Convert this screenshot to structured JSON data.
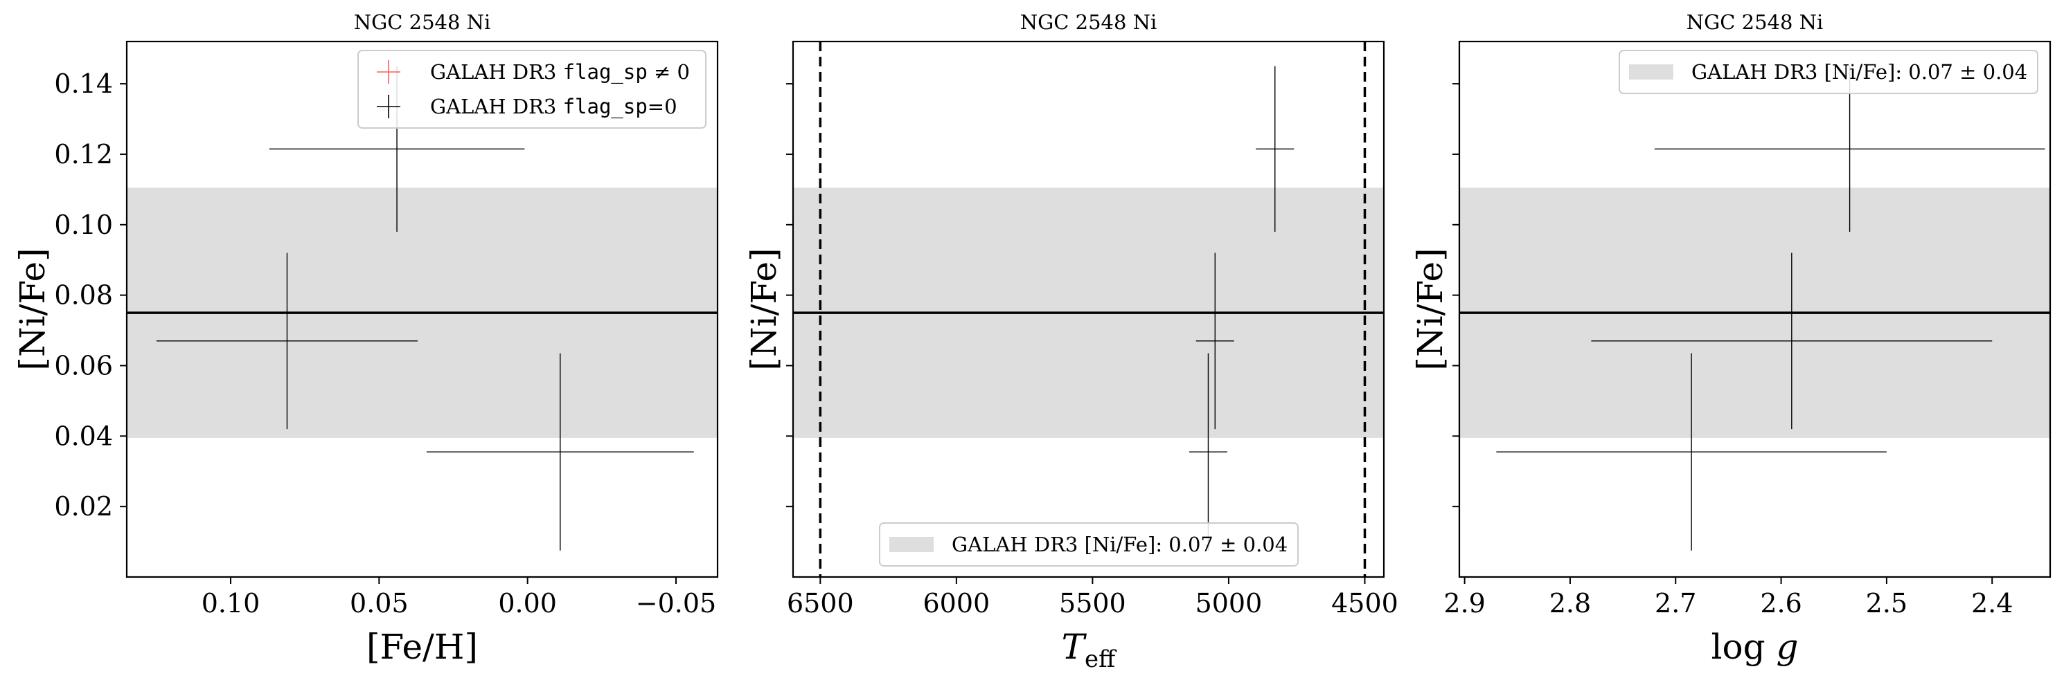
{
  "chart_data": [
    {
      "type": "scatter",
      "title": "NGC 2548 Ni",
      "xlabel": "[Fe/H]",
      "ylabel": "[Ni/Fe]",
      "xlim": [
        0.135,
        -0.064
      ],
      "ylim": [
        0.0,
        0.152
      ],
      "x_ticks": [
        0.1,
        0.05,
        0.0,
        -0.05
      ],
      "x_tick_labels": [
        "0.10",
        "0.05",
        "0.00",
        "−0.05"
      ],
      "y_ticks": [
        0.02,
        0.04,
        0.06,
        0.08,
        0.1,
        0.12,
        0.14
      ],
      "y_tick_labels": [
        "0.02",
        "0.04",
        "0.06",
        "0.08",
        "0.10",
        "0.12",
        "0.14"
      ],
      "show_y_tick_labels": true,
      "band": {
        "center": 0.075,
        "low": 0.0395,
        "high": 0.1105,
        "color": "#dedede"
      },
      "reference_line": {
        "y": 0.075
      },
      "vertical_lines": [],
      "points": [
        {
          "x": 0.044,
          "y": 0.1215,
          "xerr": 0.043,
          "yerr": 0.0235
        },
        {
          "x": 0.081,
          "y": 0.067,
          "xerr": 0.044,
          "yerr": 0.025
        },
        {
          "x": -0.011,
          "y": 0.0355,
          "xerr": 0.045,
          "yerr": 0.028
        }
      ],
      "legend": {
        "position": "top-right",
        "entries": [
          {
            "type": "marker",
            "color": "#ff5a5a",
            "prefix": "GALAH DR3 ",
            "mono": "flag_sp",
            "suffix": " ≠ 0"
          },
          {
            "type": "marker",
            "color": "#000000",
            "prefix": "GALAH DR3 ",
            "mono": "flag_sp",
            "suffix": "=0"
          }
        ]
      }
    },
    {
      "type": "scatter",
      "title": "NGC 2548 Ni",
      "xlabel": "T_eff",
      "ylabel": "[Ni/Fe]",
      "xlim": [
        6600,
        4430
      ],
      "ylim": [
        0.0,
        0.152
      ],
      "x_ticks": [
        6500,
        6000,
        5500,
        5000,
        4500
      ],
      "x_tick_labels": [
        "6500",
        "6000",
        "5500",
        "5000",
        "4500"
      ],
      "y_ticks": [
        0.02,
        0.04,
        0.06,
        0.08,
        0.1,
        0.12,
        0.14
      ],
      "y_tick_labels": [],
      "show_y_tick_labels": false,
      "band": {
        "center": 0.075,
        "low": 0.0395,
        "high": 0.1105,
        "color": "#dedede"
      },
      "reference_line": {
        "y": 0.075
      },
      "vertical_lines": [
        6500,
        4500
      ],
      "points": [
        {
          "x": 4830,
          "y": 0.1215,
          "xerr": 70,
          "yerr": 0.0235
        },
        {
          "x": 5050,
          "y": 0.067,
          "xerr": 70,
          "yerr": 0.025
        },
        {
          "x": 5075,
          "y": 0.0355,
          "xerr": 70,
          "yerr": 0.028
        }
      ],
      "legend": {
        "position": "bottom-center",
        "entries": [
          {
            "type": "patch",
            "color": "#dedede",
            "prefix": "GALAH DR3 [Ni/Fe]: 0.07 ± 0.04",
            "mono": "",
            "suffix": ""
          }
        ]
      }
    },
    {
      "type": "scatter",
      "title": "NGC 2548 Ni",
      "xlabel": "log g",
      "ylabel": "[Ni/Fe]",
      "xlim": [
        2.905,
        2.345
      ],
      "ylim": [
        0.0,
        0.152
      ],
      "x_ticks": [
        2.9,
        2.8,
        2.7,
        2.6,
        2.5,
        2.4
      ],
      "x_tick_labels": [
        "2.9",
        "2.8",
        "2.7",
        "2.6",
        "2.5",
        "2.4"
      ],
      "y_ticks": [
        0.02,
        0.04,
        0.06,
        0.08,
        0.1,
        0.12,
        0.14
      ],
      "y_tick_labels": [],
      "show_y_tick_labels": false,
      "band": {
        "center": 0.075,
        "low": 0.0395,
        "high": 0.1105,
        "color": "#dedede"
      },
      "reference_line": {
        "y": 0.075
      },
      "vertical_lines": [],
      "points": [
        {
          "x": 2.535,
          "y": 0.1215,
          "xerr": 0.185,
          "yerr": 0.0235
        },
        {
          "x": 2.59,
          "y": 0.067,
          "xerr": 0.19,
          "yerr": 0.025
        },
        {
          "x": 2.685,
          "y": 0.0355,
          "xerr": 0.185,
          "yerr": 0.028
        }
      ],
      "legend": {
        "position": "top-right",
        "entries": [
          {
            "type": "patch",
            "color": "#dedede",
            "prefix": "GALAH DR3 [Ni/Fe]: 0.07 ± 0.04",
            "mono": "",
            "suffix": ""
          }
        ]
      }
    }
  ]
}
